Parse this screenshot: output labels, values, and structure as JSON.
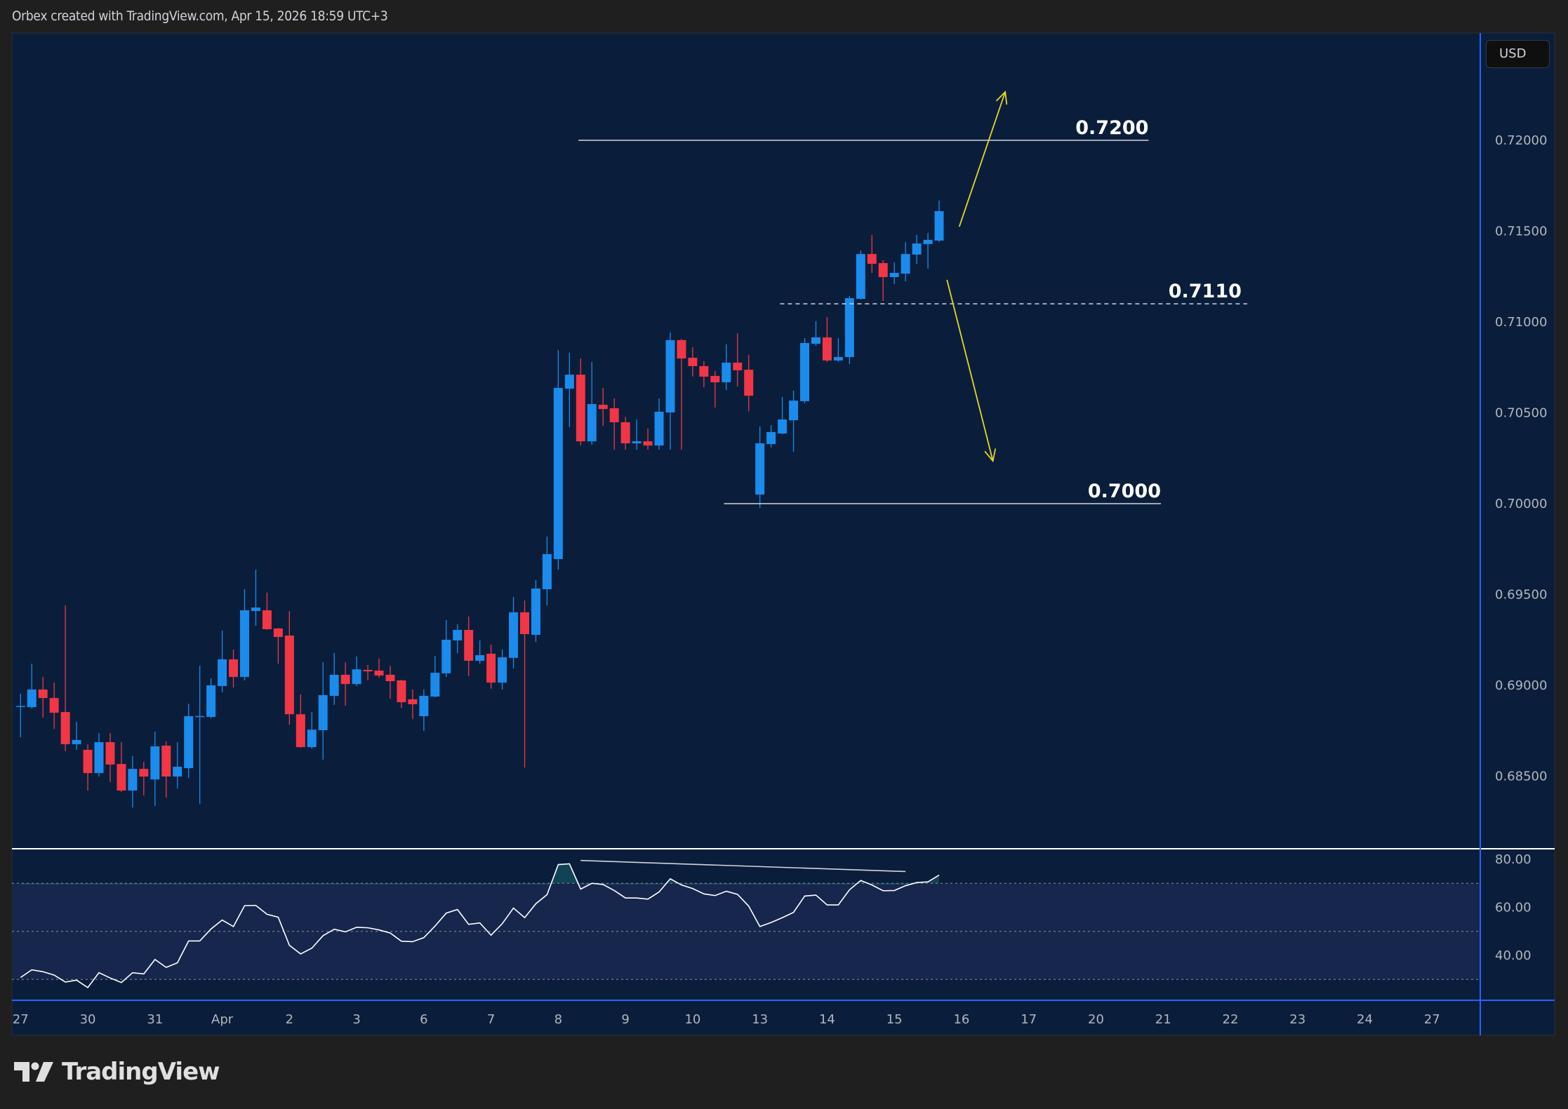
{
  "header": {
    "caption": "Orbex created with TradingView.com, Apr 15, 2026 18:59 UTC+3"
  },
  "price_scale": {
    "currency_label": "USD"
  },
  "logo": {
    "text": "TradingView"
  },
  "colors": {
    "background": "#1f1f1f",
    "pane": "#0a1e3b",
    "up": "#1b8bec",
    "down": "#f23645",
    "axis_separator": "#2962ff",
    "drawing_arrow": "#e6d52a",
    "level_line": "#d1d4dc",
    "rsi_line": "#ffffff",
    "rsi_band": "#16264c"
  },
  "chart_data": {
    "type": "candlestick",
    "interval": "4h",
    "start": "2026-03-27 00:00",
    "sessions": [
      "2026-03-27",
      "2026-03-30",
      "2026-03-31",
      "2026-04-01",
      "2026-04-02",
      "2026-04-03",
      "2026-04-06",
      "2026-04-07",
      "2026-04-08",
      "2026-04-09",
      "2026-04-10",
      "2026-04-13",
      "2026-04-14",
      "2026-04-15",
      "2026-04-16",
      "2026-04-17",
      "2026-04-20",
      "2026-04-21",
      "2026-04-22",
      "2026-04-23",
      "2026-04-24",
      "2026-04-27"
    ],
    "time_axis_labels": [
      "27",
      "30",
      "31",
      "Apr",
      "2",
      "3",
      "6",
      "7",
      "8",
      "9",
      "10",
      "13",
      "14",
      "15",
      "16",
      "17",
      "20",
      "21",
      "22",
      "23",
      "24",
      "27"
    ],
    "price_axis": {
      "ticks": [
        "0.72000",
        "0.71500",
        "0.71000",
        "0.70500",
        "0.70000",
        "0.69500",
        "0.69000",
        "0.68500"
      ],
      "tick_values": [
        0.72,
        0.715,
        0.71,
        0.705,
        0.7,
        0.695,
        0.69,
        0.685
      ]
    },
    "ohlc_fields": [
      "open",
      "high",
      "low",
      "close"
    ],
    "candles": [
      [
        0.68884,
        0.68953,
        0.68714,
        0.68886
      ],
      [
        0.6888,
        0.69119,
        0.68872,
        0.68977
      ],
      [
        0.68977,
        0.69046,
        0.68822,
        0.6893
      ],
      [
        0.6893,
        0.69015,
        0.6876,
        0.68849
      ],
      [
        0.68853,
        0.6944,
        0.68637,
        0.68676
      ],
      [
        0.68676,
        0.68799,
        0.68645,
        0.68699
      ],
      [
        0.68645,
        0.68676,
        0.68421,
        0.68517
      ],
      [
        0.68517,
        0.68737,
        0.68498,
        0.68687
      ],
      [
        0.68687,
        0.68737,
        0.68467,
        0.68564
      ],
      [
        0.68567,
        0.68687,
        0.68413,
        0.68421
      ],
      [
        0.68421,
        0.6861,
        0.68328,
        0.6854
      ],
      [
        0.6854,
        0.68579,
        0.68394,
        0.68498
      ],
      [
        0.68482,
        0.68745,
        0.68336,
        0.68664
      ],
      [
        0.68668,
        0.68691,
        0.68382,
        0.68498
      ],
      [
        0.68498,
        0.68687,
        0.68432,
        0.68552
      ],
      [
        0.68544,
        0.68899,
        0.6849,
        0.6883
      ],
      [
        0.6883,
        0.69108,
        0.68347,
        0.68831
      ],
      [
        0.68826,
        0.69038,
        0.68818,
        0.69
      ],
      [
        0.68996,
        0.69301,
        0.68961,
        0.69143
      ],
      [
        0.69143,
        0.69197,
        0.68988,
        0.69046
      ],
      [
        0.69046,
        0.69529,
        0.69027,
        0.69413
      ],
      [
        0.69409,
        0.69637,
        0.69328,
        0.69428
      ],
      [
        0.69413,
        0.6951,
        0.69305,
        0.69309
      ],
      [
        0.69313,
        0.69316,
        0.69119,
        0.69266
      ],
      [
        0.69274,
        0.69409,
        0.68783,
        0.68841
      ],
      [
        0.68841,
        0.6895,
        0.68656,
        0.6866
      ],
      [
        0.6866,
        0.68853,
        0.68652,
        0.68756
      ],
      [
        0.68753,
        0.69127,
        0.68591,
        0.68946
      ],
      [
        0.68942,
        0.69178,
        0.68892,
        0.69058
      ],
      [
        0.69058,
        0.69127,
        0.68888,
        0.69007
      ],
      [
        0.69007,
        0.69158,
        0.68996,
        0.69088
      ],
      [
        0.69085,
        0.69112,
        0.69027,
        0.69077
      ],
      [
        0.69081,
        0.69147,
        0.69042,
        0.69054
      ],
      [
        0.69058,
        0.69108,
        0.68926,
        0.69023
      ],
      [
        0.69027,
        0.69031,
        0.68876,
        0.68907
      ],
      [
        0.68923,
        0.68977,
        0.68814,
        0.68896
      ],
      [
        0.6883,
        0.68977,
        0.68749,
        0.68942
      ],
      [
        0.68938,
        0.69162,
        0.68934,
        0.69069
      ],
      [
        0.69066,
        0.69359,
        0.69046,
        0.69251
      ],
      [
        0.69247,
        0.69336,
        0.69177,
        0.69305
      ],
      [
        0.69305,
        0.69378,
        0.6905,
        0.69135
      ],
      [
        0.69135,
        0.69247,
        0.69119,
        0.69166
      ],
      [
        0.69174,
        0.69224,
        0.68981,
        0.69015
      ],
      [
        0.69015,
        0.69197,
        0.68977,
        0.69154
      ],
      [
        0.69151,
        0.69486,
        0.69093,
        0.69402
      ],
      [
        0.69402,
        0.69467,
        0.68548,
        0.69282
      ],
      [
        0.69278,
        0.69579,
        0.69239,
        0.69533
      ],
      [
        0.69529,
        0.69818,
        0.6944,
        0.69722
      ],
      [
        0.69695,
        0.70845,
        0.69637,
        0.70637
      ],
      [
        0.70633,
        0.7083,
        0.70421,
        0.7071
      ],
      [
        0.7071,
        0.70799,
        0.7032,
        0.70343
      ],
      [
        0.70343,
        0.7078,
        0.70324,
        0.70548
      ],
      [
        0.70544,
        0.70637,
        0.70428,
        0.70521
      ],
      [
        0.70525,
        0.70579,
        0.70297,
        0.70448
      ],
      [
        0.70448,
        0.70478,
        0.70297,
        0.70332
      ],
      [
        0.70332,
        0.70463,
        0.70297,
        0.70343
      ],
      [
        0.70343,
        0.70413,
        0.70297,
        0.7032
      ],
      [
        0.7032,
        0.70579,
        0.70297,
        0.70506
      ],
      [
        0.70502,
        0.70942,
        0.70297,
        0.709
      ],
      [
        0.709,
        0.70907,
        0.70297,
        0.70799
      ],
      [
        0.70803,
        0.70861,
        0.70699,
        0.70757
      ],
      [
        0.70757,
        0.70784,
        0.70641,
        0.70699
      ],
      [
        0.70703,
        0.7073,
        0.70529,
        0.70668
      ],
      [
        0.70668,
        0.70877,
        0.70625,
        0.70776
      ],
      [
        0.70776,
        0.70938,
        0.70645,
        0.70734
      ],
      [
        0.70737,
        0.70818,
        0.70509,
        0.70594
      ],
      [
        0.7005,
        0.70425,
        0.69977,
        0.70332
      ],
      [
        0.70328,
        0.70432,
        0.70309,
        0.70394
      ],
      [
        0.70386,
        0.70587,
        0.70382,
        0.70463
      ],
      [
        0.70459,
        0.70622,
        0.70286,
        0.70567
      ],
      [
        0.70564,
        0.70911,
        0.70552,
        0.70884
      ],
      [
        0.7088,
        0.71004,
        0.70869,
        0.70915
      ],
      [
        0.70915,
        0.71027,
        0.7078,
        0.70788
      ],
      [
        0.70788,
        0.70911,
        0.7078,
        0.70807
      ],
      [
        0.70807,
        0.71143,
        0.70768,
        0.71131
      ],
      [
        0.71127,
        0.71394,
        0.71123,
        0.71374
      ],
      [
        0.71374,
        0.71479,
        0.7127,
        0.7132
      ],
      [
        0.71324,
        0.7134,
        0.71116,
        0.71247
      ],
      [
        0.71247,
        0.71328,
        0.71208,
        0.7127
      ],
      [
        0.71266,
        0.7144,
        0.71224,
        0.71374
      ],
      [
        0.71371,
        0.71479,
        0.7132,
        0.71432
      ],
      [
        0.71429,
        0.7149,
        0.71293,
        0.71452
      ],
      [
        0.71448,
        0.71668,
        0.7144,
        0.7161
      ]
    ],
    "rsi": {
      "ticks": [
        "80.00",
        "60.00",
        "40.00"
      ],
      "tick_values": [
        80,
        60,
        40
      ],
      "band": [
        30,
        70
      ],
      "midline": 50,
      "values": [
        30.8,
        34.0,
        33.2,
        31.8,
        28.9,
        29.7,
        26.6,
        32.8,
        30.6,
        28.7,
        32.8,
        32.3,
        38.3,
        35.0,
        36.9,
        46.0,
        46.0,
        51.0,
        54.7,
        52.0,
        60.7,
        60.8,
        57.1,
        55.9,
        44.2,
        40.6,
        43.0,
        48.2,
        50.9,
        49.8,
        51.7,
        51.5,
        50.6,
        49.3,
        45.9,
        45.7,
        47.4,
        52.2,
        57.6,
        59.1,
        52.9,
        53.5,
        48.4,
        53.2,
        59.7,
        55.7,
        61.5,
        65.3,
        77.8,
        78.1,
        67.6,
        70.0,
        69.5,
        67.0,
        63.9,
        63.9,
        63.4,
        66.4,
        71.9,
        69.3,
        67.8,
        65.6,
        64.9,
        66.7,
        65.4,
        60.5,
        52.0,
        53.7,
        55.7,
        57.9,
        64.7,
        65.1,
        61.0,
        61.0,
        67.3,
        71.2,
        69.3,
        66.9,
        67.0,
        69.0,
        70.3,
        70.6,
        73.4
      ],
      "trendline": {
        "from": {
          "time": "2026-04-08 08:00",
          "value": 79.5
        },
        "to": {
          "time": "2026-04-15 04:00",
          "value": 74.9
        }
      }
    },
    "levels": [
      {
        "label": "0.7200",
        "price": 0.72,
        "style": "solid",
        "from": "2026-04-08 07:12",
        "to": "2026-04-20 18:48"
      },
      {
        "label": "0.7110",
        "price": 0.711,
        "style": "dashed",
        "from": "2026-04-13 07:12",
        "to": "2026-04-22 06:00"
      },
      {
        "label": "0.7000",
        "price": 0.7,
        "style": "solid",
        "from": "2026-04-10 11:12",
        "to": "2026-04-20 23:12"
      }
    ],
    "arrows": [
      {
        "direction": "up",
        "from": {
          "time": "2026-04-15 23:12",
          "price": 0.71525
        },
        "to": {
          "time": "2026-04-16 15:36",
          "price": 0.72266
        }
      },
      {
        "direction": "down",
        "from": {
          "time": "2026-04-15 18:48",
          "price": 0.71232
        },
        "to": {
          "time": "2026-04-16 11:12",
          "price": 0.70235
        }
      }
    ]
  }
}
